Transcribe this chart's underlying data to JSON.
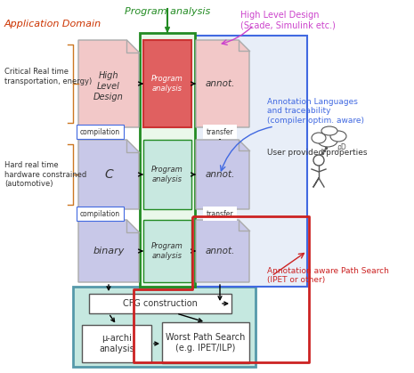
{
  "bg_color": "#ffffff",
  "label_app_domain": "Application Domain",
  "label_program_analysis": "Program analysis",
  "label_high_level_design_top": "High Level Design\n(Scade, Simulink etc.)",
  "label_annotation_languages": "Annotation Languages\nand traceability\n(compiler optim. aware)",
  "label_user_provided": "User provided properties",
  "label_annotation_aware": "Annotation aware Path Search\n(IPET or other)",
  "label_critical": "Critical Real time\ntransportation, energy)",
  "label_hard_real": "Hard real time\nhardware constrained\n(automotive)",
  "box_hl_text": "High\nLevel\nDesign",
  "box_c_text": "C",
  "box_binary_text": "binary",
  "box_prog_analysis1": "Program\nanalysis",
  "box_prog_analysis2": "Program\nanalysis",
  "box_prog_analysis3": "Program\nanalysis",
  "box_annot1": "annot.",
  "box_annot2": "annot.",
  "box_annot3": "annot.",
  "box_cfg": "CFG construction",
  "box_mu_archi": "μ-archi\nanalysis",
  "box_worst_path": "Worst Path Search\n(e.g. IPET/ILP)",
  "label_compilation1": "compilation",
  "label_compilation2": "compilation",
  "label_transfer1": "transfer",
  "label_transfer2": "transfer"
}
